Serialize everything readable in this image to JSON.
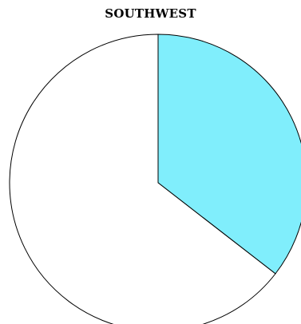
{
  "chart_data": {
    "type": "pie",
    "title": "SOUTHWEST",
    "slices": [
      {
        "value": 35.5,
        "color": "#80eefc"
      },
      {
        "value": 64.5,
        "color": "#ffffff"
      }
    ],
    "start_angle_deg": 0,
    "direction": "clockwise",
    "stroke_color": "#000000"
  }
}
